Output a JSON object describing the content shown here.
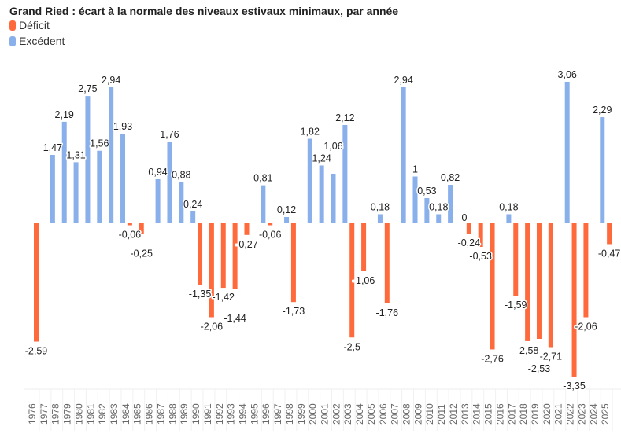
{
  "chart_data": {
    "type": "bar",
    "title": "Grand Ried : écart à la normale des niveaux estivaux minimaux, par année",
    "legend": [
      {
        "name": "Déficit",
        "color": "#FF6A3D"
      },
      {
        "name": "Excédent",
        "color": "#8AB0EB"
      }
    ],
    "legend_placement": "top-left",
    "categories": [
      "1976",
      "1977",
      "1978",
      "1979",
      "1980",
      "1981",
      "1982",
      "1983",
      "1984",
      "1985",
      "1986",
      "1987",
      "1988",
      "1989",
      "1990",
      "1991",
      "1992",
      "1993",
      "1994",
      "1995",
      "1996",
      "1997",
      "1998",
      "1999",
      "2000",
      "2001",
      "2002",
      "2003",
      "2004",
      "2005",
      "2006",
      "2007",
      "2008",
      "2009",
      "2010",
      "2011",
      "2012",
      "2013",
      "2014",
      "2015",
      "2016",
      "2017",
      "2018",
      "2019",
      "2020",
      "2021",
      "2022",
      "2023",
      "2024",
      "2025"
    ],
    "values": [
      -2.59,
      1.47,
      2.19,
      1.31,
      2.75,
      1.56,
      2.94,
      1.93,
      -0.06,
      -0.25,
      0.94,
      1.76,
      0.88,
      0.24,
      -1.35,
      -2.06,
      -1.42,
      -1.44,
      -0.27,
      0.81,
      -0.06,
      0.12,
      -1.73,
      1.82,
      1.24,
      1.06,
      2.12,
      -2.5,
      -1.06,
      0.18,
      -1.76,
      2.94,
      1,
      0.53,
      0.18,
      0.82,
      0,
      -0.24,
      -0.53,
      -2.76,
      0.18,
      -1.59,
      -2.58,
      -2.53,
      -2.71,
      3.06,
      -3.35,
      -2.06,
      2.29,
      -0.47
    ],
    "value_labels": [
      "-2,59",
      "1,47",
      "2,19",
      "1,31",
      "2,75",
      "1,56",
      "2,94",
      "1,93",
      "-0,06",
      "-0,25",
      "0,94",
      "1,76",
      "0,88",
      "0,24",
      "-1,35",
      "-2,06",
      "-1,42",
      "-1,44",
      "-0,27",
      "0,81",
      "-0,06",
      "0,12",
      "-1,73",
      "1,82",
      "1,24",
      "1,06",
      "2,12",
      "-2,5",
      "-1,06",
      "0,18",
      "-1,76",
      "2,94",
      "1",
      "0,53",
      "0,18",
      "0,82",
      "0",
      "-0,24",
      "-0,53",
      "-2,76",
      "0,18",
      "-1,59",
      "-2,58",
      "-2,53",
      "-2,71",
      "3,06",
      "-3,35",
      "-2,06",
      "2,29",
      "-0,47"
    ],
    "xlabel": "",
    "ylabel": "",
    "ylim": [
      -3.5,
      3.1
    ],
    "grid": false
  }
}
